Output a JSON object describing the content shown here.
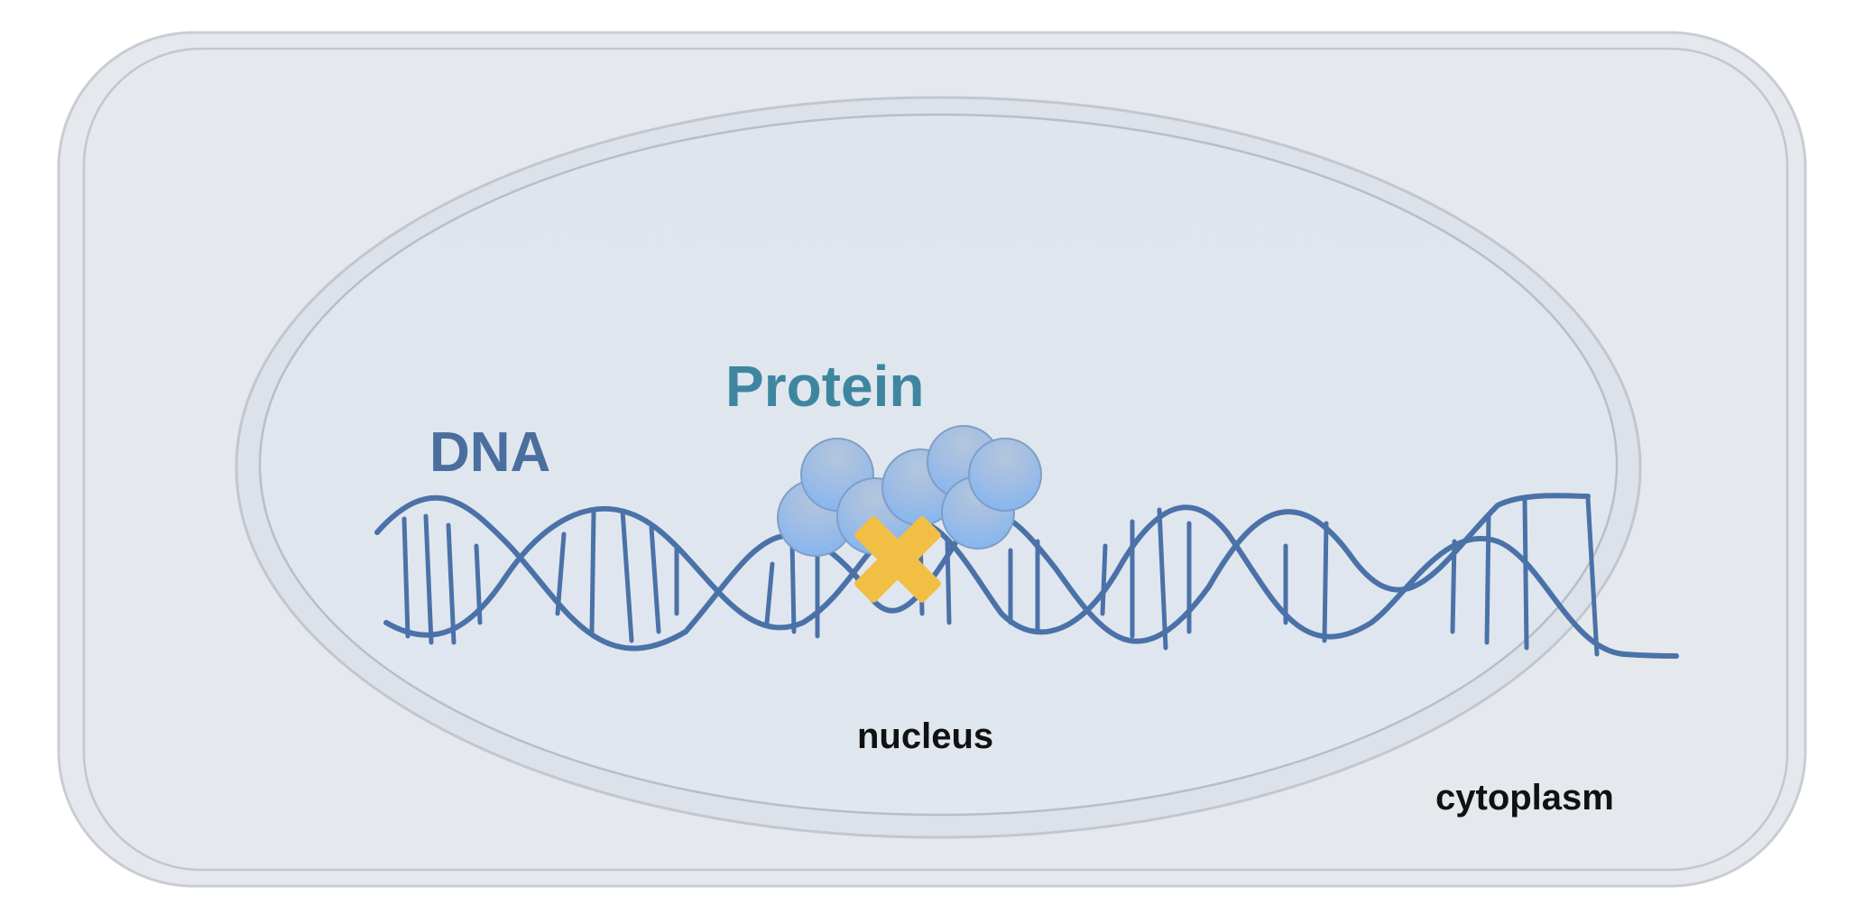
{
  "labels": {
    "dna": "DNA",
    "protein": "Protein",
    "nucleus": "nucleus",
    "cytoplasm": "cytoplasm"
  },
  "colors": {
    "page_background": "#ffffff",
    "cell_fill": "#e4e8ee",
    "cell_stroke": "#c5cad2",
    "nucleus_fill": "#dfe6ef",
    "nucleus_stroke": "#bcc2cb",
    "dna_strand": "#4a72a8",
    "dna_label": "#4a6f9e",
    "protein_label": "#3e86a0",
    "protein_sphere_top": "#a9bfdc",
    "protein_sphere_bottom": "#8ab9ef",
    "marker": "#f2c04a",
    "text_dark": "#111111"
  },
  "icons": {
    "marker": "yellow-x-mark-icon",
    "protein_subunit": "sphere-icon"
  }
}
